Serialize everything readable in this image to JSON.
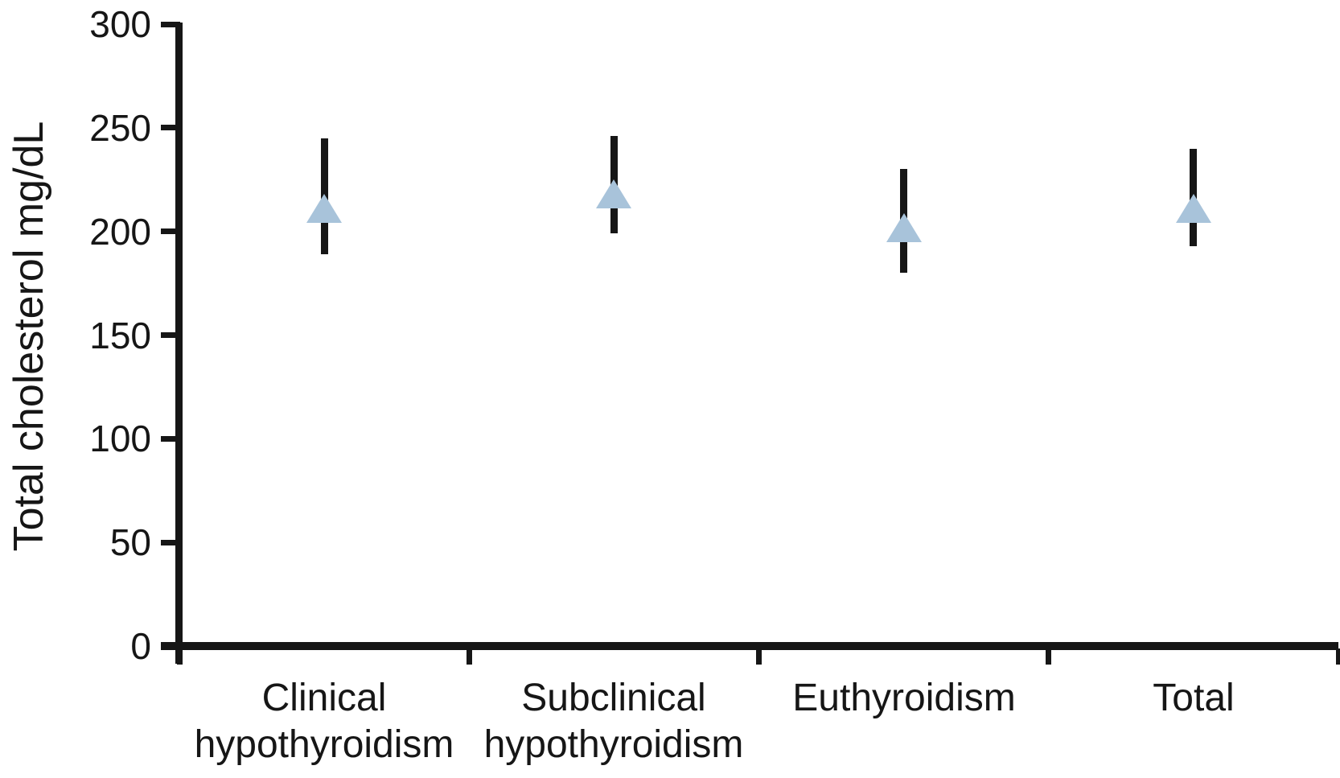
{
  "chart_data": {
    "type": "scatter",
    "title": "",
    "ylabel": "Total cholesterol mg/dL",
    "xlabel": "",
    "ylim": [
      0,
      300
    ],
    "ytick_interval": 50,
    "yticks": [
      0,
      50,
      100,
      150,
      200,
      250,
      300
    ],
    "grid": false,
    "legend": false,
    "background_color": "#ffffff",
    "axis_color": "#161616",
    "categories": [
      "Clinical hypothyroidism",
      "Subclinical hypothyroidism",
      "Euthyroidism",
      "Total"
    ],
    "series": [
      {
        "name": "Total cholesterol",
        "marker": "triangle-up",
        "marker_color": "#a8c3da",
        "error_bar_color": "#161616",
        "values": [
          211,
          218,
          202,
          211
        ],
        "error_high": [
          245,
          246,
          230,
          240
        ],
        "error_low": [
          189,
          199,
          180,
          193
        ]
      }
    ]
  }
}
